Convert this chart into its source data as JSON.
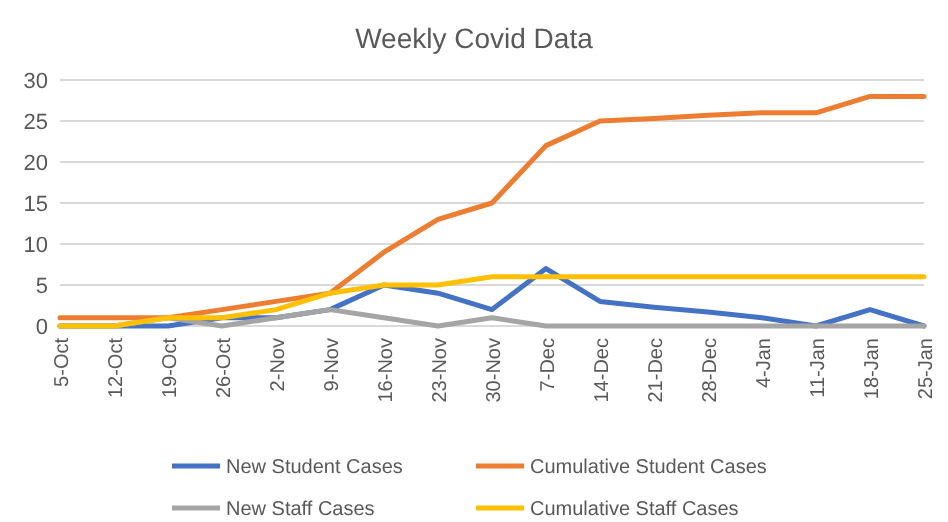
{
  "chart_data": {
    "type": "line",
    "title": "Weekly Covid Data",
    "categories": [
      "5-Oct",
      "12-Oct",
      "19-Oct",
      "26-Oct",
      "2-Nov",
      "9-Nov",
      "16-Nov",
      "23-Nov",
      "30-Nov",
      "7-Dec",
      "14-Dec",
      "21-Dec",
      "28-Dec",
      "4-Jan",
      "11-Jan",
      "18-Jan",
      "25-Jan"
    ],
    "series": [
      {
        "name": "New Student Cases",
        "color": "#4472c4",
        "values": [
          0,
          0,
          0,
          1,
          1,
          2,
          5,
          4,
          2,
          7,
          3,
          2.3,
          1.7,
          1,
          0,
          2,
          0
        ]
      },
      {
        "name": "Cumulative Student Cases",
        "color": "#ed7d31",
        "values": [
          1,
          1,
          1,
          2,
          3,
          4,
          9,
          13,
          15,
          22,
          25,
          25.3,
          25.7,
          26,
          26,
          28,
          28
        ]
      },
      {
        "name": "New Staff Cases",
        "color": "#a5a5a5",
        "values": [
          0,
          0,
          1,
          0,
          1,
          2,
          1,
          0,
          1,
          0,
          0,
          0,
          0,
          0,
          0,
          0,
          0
        ]
      },
      {
        "name": "Cumulative Staff Cases",
        "color": "#ffc000",
        "values": [
          0,
          0,
          1,
          1,
          2,
          4,
          5,
          5,
          6,
          6,
          6,
          6,
          6,
          6,
          6,
          6,
          6
        ]
      }
    ],
    "ylim": [
      0,
      30
    ],
    "yticks": [
      0,
      5,
      10,
      15,
      20,
      25,
      30
    ],
    "grid": "y",
    "legend": "bottom",
    "marker": "none",
    "line_style": "solid"
  }
}
